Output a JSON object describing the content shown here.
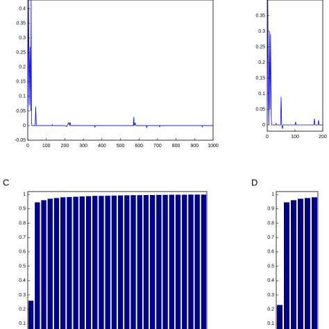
{
  "chart_data": [
    {
      "type": "line",
      "color": "#0000ff",
      "x": [
        0,
        5,
        8,
        10,
        12,
        14,
        16,
        18,
        20,
        22,
        40,
        43,
        46,
        130,
        132,
        134,
        200,
        210,
        220,
        225,
        228,
        232,
        360,
        362,
        364,
        570,
        572,
        574,
        580,
        582,
        640,
        642,
        644,
        710,
        712,
        714,
        940,
        942,
        944,
        1000
      ],
      "values": [
        0,
        0.43,
        0.07,
        0.21,
        0.27,
        0.15,
        0.05,
        0.43,
        0.02,
        0,
        0,
        0.065,
        0,
        0,
        0.003,
        0,
        0,
        -0.003,
        0.01,
        0,
        0.012,
        0,
        0,
        -0.006,
        0,
        0,
        0.03,
        0,
        0.01,
        0,
        0,
        -0.008,
        0,
        0,
        -0.005,
        0,
        0,
        -0.004,
        0,
        0
      ],
      "xlim": [
        0,
        1000
      ],
      "xticks": [
        0,
        100,
        200,
        300,
        400,
        500,
        600,
        700,
        800,
        900,
        1000
      ],
      "ylim": [
        -0.05,
        0.43
      ],
      "yticks": [
        -0.05,
        0,
        0.05,
        0.1,
        0.15,
        0.2,
        0.25,
        0.3,
        0.35,
        0.4
      ]
    },
    {
      "type": "line",
      "color": "#0000ff",
      "x": [
        0,
        2,
        4,
        6,
        8,
        10,
        12,
        14,
        16,
        30,
        32,
        34,
        48,
        50,
        52,
        55,
        57,
        60,
        100,
        102,
        104,
        168,
        170,
        172,
        183,
        185,
        187,
        200
      ],
      "values": [
        0,
        0.4,
        0.1,
        0,
        0.3,
        0.05,
        0.29,
        0.03,
        0,
        0,
        0.005,
        0,
        0,
        0.09,
        0,
        -0.012,
        0,
        0,
        0,
        0.01,
        0,
        0,
        0.02,
        0,
        0,
        0.015,
        0,
        0
      ],
      "xlim": [
        0,
        200
      ],
      "xticks": [
        0,
        100,
        200
      ],
      "ylim": [
        -0.02,
        0.4
      ],
      "yticks": [
        0,
        0.05,
        0.1,
        0.15,
        0.2,
        0.25,
        0.3,
        0.35
      ]
    },
    {
      "type": "bar",
      "label": "C",
      "color": "#00008b",
      "values": [
        0.26,
        0.945,
        0.96,
        0.97,
        0.975,
        0.98,
        0.982,
        0.984,
        0.986,
        0.988,
        0.99,
        0.99,
        0.991,
        0.992,
        0.993,
        0.994,
        0.995,
        0.995,
        0.996,
        0.996,
        0.997,
        0.997,
        0.998,
        0.998,
        0.998,
        0.999,
        0.999,
        0.999
      ],
      "ylim": [
        0,
        1.02
      ],
      "yticks": [
        0.1,
        0.2,
        0.3,
        0.4,
        0.5,
        0.6,
        0.7,
        0.8,
        0.9,
        1
      ]
    },
    {
      "type": "bar",
      "label": "D",
      "color": "#00008b",
      "values": [
        0.23,
        0.945,
        0.96,
        0.97,
        0.975,
        0.98
      ],
      "ylim": [
        0,
        1.02
      ],
      "yticks": [
        0.1,
        0.2,
        0.3,
        0.4,
        0.5,
        0.6,
        0.7,
        0.8,
        0.9,
        1
      ]
    }
  ]
}
